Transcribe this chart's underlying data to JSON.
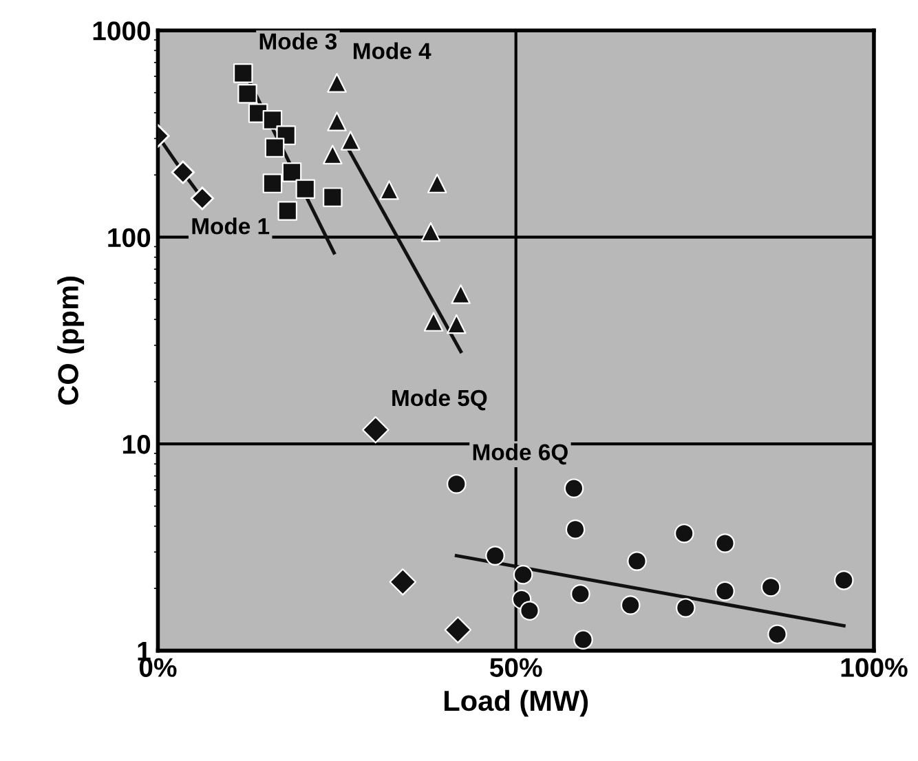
{
  "chart_data": {
    "type": "scatter",
    "xlabel": "Load (MW)",
    "ylabel": "CO (ppm)",
    "log": "y",
    "grid": true,
    "legend": false,
    "xlim": [
      0,
      100
    ],
    "xticks": [
      {
        "value": 0,
        "label": "0%"
      },
      {
        "value": 50,
        "label": "50%"
      },
      {
        "value": 100,
        "label": "100%"
      }
    ],
    "ylim": [
      1,
      1000
    ],
    "yticks": [
      1,
      10,
      100,
      1000
    ],
    "series": [
      {
        "type": "line",
        "name": "Mode 1",
        "marker": "diamond",
        "color": "#111111",
        "x": [
          0,
          3.5,
          6.2
        ],
        "values": [
          309,
          206,
          154
        ]
      },
      {
        "name": "Mode 3",
        "marker": "square",
        "color": "#111111",
        "x": [
          11.9,
          12.5,
          14.0,
          16.0,
          17.9,
          16.3,
          18.7,
          16.0,
          20.6,
          24.4,
          18.1
        ],
        "values": [
          621,
          494,
          398,
          369,
          311,
          271,
          206,
          182,
          171,
          156,
          134
        ]
      },
      {
        "type": "line",
        "marker": "none",
        "color": "#111111",
        "x": [
          11.9,
          24.6
        ],
        "values": [
          651,
          84
        ]
      },
      {
        "name": "Mode 4",
        "marker": "triangle",
        "color": "#111111",
        "x": [
          25.0,
          25.0,
          26.9,
          24.4,
          32.3,
          39.0,
          38.1,
          42.3,
          38.5,
          41.7
        ],
        "values": [
          558,
          363,
          293,
          251,
          169,
          182,
          106,
          53,
          39,
          38
        ]
      },
      {
        "type": "line",
        "marker": "none",
        "color": "#111111",
        "x": [
          26.5,
          42.3
        ],
        "values": [
          271,
          28
        ]
      },
      {
        "name": "Mode 5Q",
        "marker": "diamond",
        "color": "#111111",
        "x": [
          30.4,
          34.2,
          41.9
        ],
        "values": [
          11.7,
          2.15,
          1.26
        ]
      },
      {
        "name": "Mode 6Q",
        "marker": "circle",
        "color": "#111111",
        "x": [
          41.7,
          47.1,
          51.0,
          50.8,
          51.9,
          58.1,
          58.3,
          59.0,
          59.4,
          66.9,
          66.0,
          73.5,
          73.7,
          79.2,
          79.2,
          85.6,
          86.5,
          95.8
        ],
        "values": [
          6.4,
          2.88,
          2.33,
          1.77,
          1.56,
          6.1,
          3.86,
          1.88,
          1.13,
          2.71,
          1.66,
          3.69,
          1.61,
          3.31,
          1.94,
          2.03,
          1.2,
          2.19
        ]
      },
      {
        "type": "line",
        "marker": "none",
        "color": "#111111",
        "x": [
          41.7,
          95.8
        ],
        "values": [
          2.88,
          1.32
        ]
      }
    ]
  }
}
